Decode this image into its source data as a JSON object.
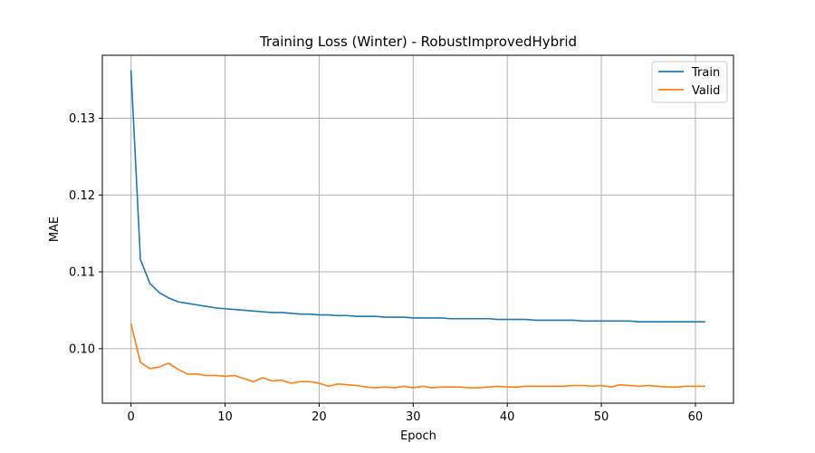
{
  "chart_data": {
    "type": "line",
    "title": "Training Loss (Winter) - RobustImprovedHybrid",
    "xlabel": "Epoch",
    "ylabel": "MAE",
    "xlim": [
      -3.05,
      64.05
    ],
    "ylim": [
      0.0929,
      0.1382
    ],
    "xticks": [
      0,
      10,
      20,
      30,
      40,
      50,
      60
    ],
    "yticks": [
      0.1,
      0.11,
      0.12,
      0.13
    ],
    "ytick_labels": [
      "0.10",
      "0.11",
      "0.12",
      "0.13"
    ],
    "grid": true,
    "legend_position": "top-right",
    "colors": {
      "Train": "#1f77b4",
      "Valid": "#ff7f0e"
    },
    "series": [
      {
        "name": "Train",
        "values": [
          0.1362,
          0.1116,
          0.1085,
          0.1073,
          0.1066,
          0.1061,
          0.1059,
          0.1057,
          0.1055,
          0.1053,
          0.1052,
          0.1051,
          0.105,
          0.1049,
          0.1048,
          0.1047,
          0.1047,
          0.1046,
          0.1045,
          0.1045,
          0.1044,
          0.1044,
          0.1043,
          0.1043,
          0.1042,
          0.1042,
          0.1042,
          0.1041,
          0.1041,
          0.1041,
          0.104,
          0.104,
          0.104,
          0.104,
          0.1039,
          0.1039,
          0.1039,
          0.1039,
          0.1039,
          0.1038,
          0.1038,
          0.1038,
          0.1038,
          0.1037,
          0.1037,
          0.1037,
          0.1037,
          0.1037,
          0.1036,
          0.1036,
          0.1036,
          0.1036,
          0.1036,
          0.1036,
          0.1035,
          0.1035,
          0.1035,
          0.1035,
          0.1035,
          0.1035,
          0.1035,
          0.1035
        ]
      },
      {
        "name": "Valid",
        "values": [
          0.1032,
          0.0982,
          0.0974,
          0.0976,
          0.0981,
          0.0973,
          0.0967,
          0.0967,
          0.0965,
          0.0965,
          0.0964,
          0.0965,
          0.0961,
          0.0957,
          0.0962,
          0.0958,
          0.0959,
          0.0955,
          0.0957,
          0.0957,
          0.0955,
          0.0951,
          0.0954,
          0.0953,
          0.0952,
          0.095,
          0.0949,
          0.095,
          0.0949,
          0.0951,
          0.0949,
          0.0951,
          0.0949,
          0.095,
          0.095,
          0.095,
          0.0949,
          0.0949,
          0.095,
          0.0951,
          0.095,
          0.095,
          0.0951,
          0.0951,
          0.0951,
          0.0951,
          0.0951,
          0.0952,
          0.0952,
          0.0951,
          0.0952,
          0.095,
          0.0953,
          0.0952,
          0.0951,
          0.0952,
          0.0951,
          0.095,
          0.095,
          0.0951,
          0.0951,
          0.0951
        ]
      }
    ]
  }
}
